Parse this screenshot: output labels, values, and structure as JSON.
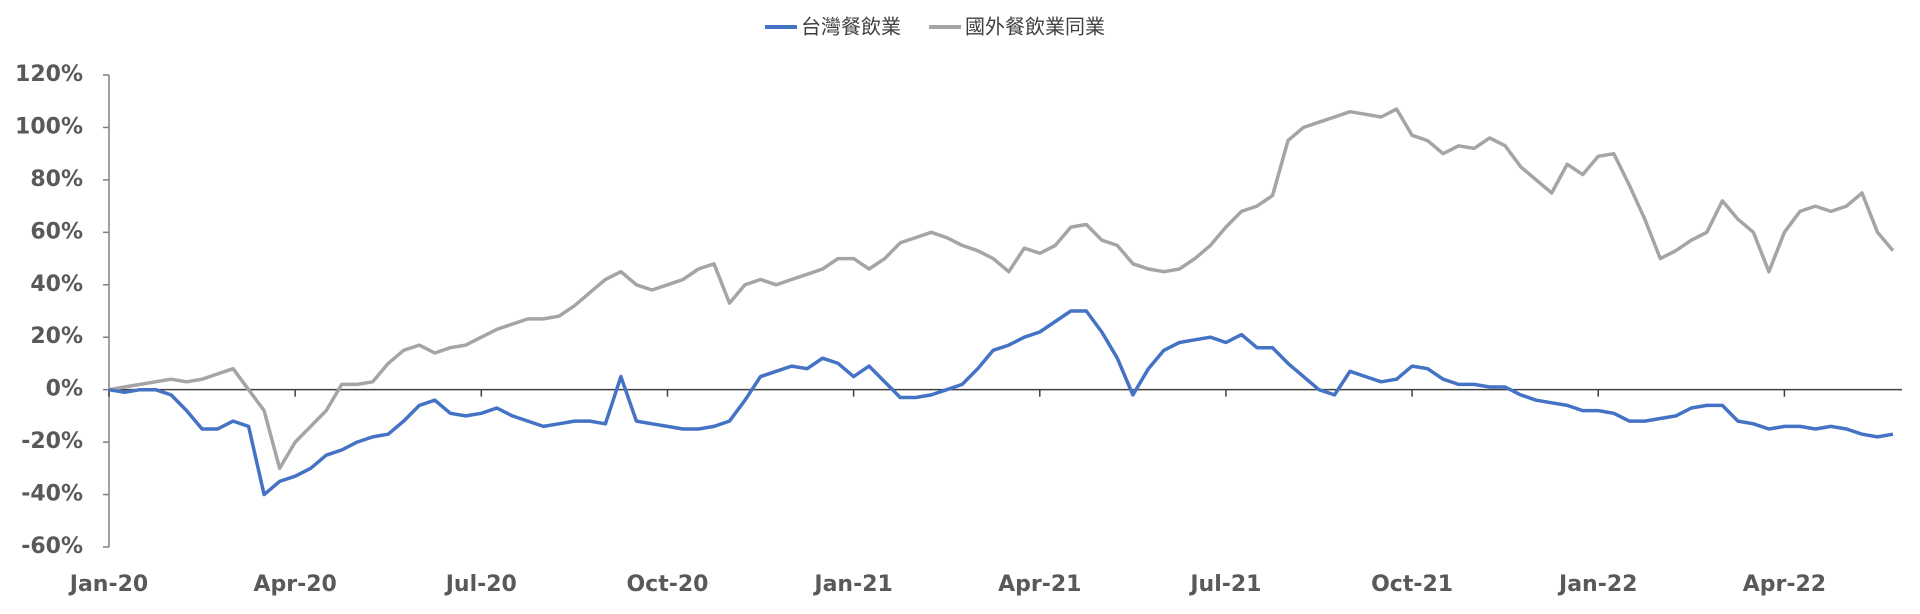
{
  "chart_data": {
    "type": "line",
    "categories": [
      "Jan-20",
      null,
      null,
      null,
      null,
      null,
      null,
      null,
      null,
      null,
      null,
      null,
      "Apr-20",
      null,
      null,
      null,
      null,
      null,
      null,
      null,
      null,
      null,
      null,
      null,
      "Jul-20",
      null,
      null,
      null,
      null,
      null,
      null,
      null,
      null,
      null,
      null,
      null,
      "Oct-20",
      null,
      null,
      null,
      null,
      null,
      null,
      null,
      null,
      null,
      null,
      null,
      "Jan-21",
      null,
      null,
      null,
      null,
      null,
      null,
      null,
      null,
      null,
      null,
      null,
      "Apr-21",
      null,
      null,
      null,
      null,
      null,
      null,
      null,
      null,
      null,
      null,
      null,
      "Jul-21",
      null,
      null,
      null,
      null,
      null,
      null,
      null,
      null,
      null,
      null,
      null,
      "Oct-21",
      null,
      null,
      null,
      null,
      null,
      null,
      null,
      null,
      null,
      null,
      null,
      "Jan-22",
      null,
      null,
      null,
      null,
      null,
      null,
      null,
      null,
      null,
      null,
      null,
      "Apr-22",
      null,
      null,
      null,
      null,
      null,
      null,
      null
    ],
    "series": [
      {
        "name": "台灣餐飲業",
        "color": "#4472c4",
        "values": [
          0,
          -1,
          0,
          0,
          -2,
          -8,
          -15,
          -15,
          -12,
          -14,
          -40,
          -35,
          -33,
          -30,
          -25,
          -23,
          -20,
          -18,
          -17,
          -12,
          -6,
          -4,
          -9,
          -10,
          -9,
          -7,
          -10,
          -12,
          -14,
          -13,
          -12,
          -12,
          -13,
          5,
          -12,
          -13,
          -14,
          -15,
          -15,
          -14,
          -12,
          -4,
          5,
          7,
          9,
          8,
          12,
          10,
          5,
          9,
          3,
          -3,
          -3,
          -2,
          0,
          2,
          8,
          15,
          17,
          20,
          22,
          26,
          30,
          30,
          22,
          12,
          -2,
          8,
          15,
          18,
          19,
          20,
          18,
          21,
          16,
          16,
          10,
          5,
          0,
          -2,
          7,
          5,
          3,
          4,
          9,
          8,
          4,
          2,
          2,
          1,
          1,
          -2,
          -4,
          -5,
          -6,
          -8,
          -8,
          -9,
          -12,
          -12,
          -11,
          -10,
          -7,
          -6,
          -6,
          -12,
          -13,
          -15,
          -14,
          -14,
          -15,
          -14,
          -15,
          -17,
          -18,
          -17
        ]
      },
      {
        "name": "國外餐飲業同業",
        "color": "#a5a5a5",
        "values": [
          0,
          1,
          2,
          3,
          4,
          3,
          4,
          6,
          8,
          0,
          -8,
          -30,
          -20,
          -14,
          -8,
          2,
          2,
          3,
          10,
          15,
          17,
          14,
          16,
          17,
          20,
          23,
          25,
          27,
          27,
          28,
          32,
          37,
          42,
          45,
          40,
          38,
          40,
          42,
          46,
          48,
          33,
          40,
          42,
          40,
          42,
          44,
          46,
          50,
          50,
          46,
          50,
          56,
          58,
          60,
          58,
          55,
          53,
          50,
          45,
          54,
          52,
          55,
          62,
          63,
          57,
          55,
          48,
          46,
          45,
          46,
          50,
          55,
          62,
          68,
          70,
          74,
          95,
          100,
          102,
          104,
          106,
          105,
          104,
          107,
          97,
          95,
          90,
          93,
          92,
          96,
          93,
          85,
          80,
          75,
          86,
          82,
          89,
          90,
          78,
          65,
          50,
          53,
          57,
          60,
          72,
          65,
          60,
          45,
          60,
          68,
          70,
          68,
          70,
          75,
          60,
          53
        ]
      }
    ],
    "ylim": [
      -60,
      120
    ],
    "yticks": [
      {
        "value": -60,
        "label": "-60%"
      },
      {
        "value": -40,
        "label": "-40%"
      },
      {
        "value": -20,
        "label": "-20%"
      },
      {
        "value": 0,
        "label": "0%"
      },
      {
        "value": 20,
        "label": "20%"
      },
      {
        "value": 40,
        "label": "40%"
      },
      {
        "value": 60,
        "label": "60%"
      },
      {
        "value": 80,
        "label": "80%"
      },
      {
        "value": 100,
        "label": "100%"
      },
      {
        "value": 120,
        "label": "120%"
      }
    ],
    "grid": false
  }
}
